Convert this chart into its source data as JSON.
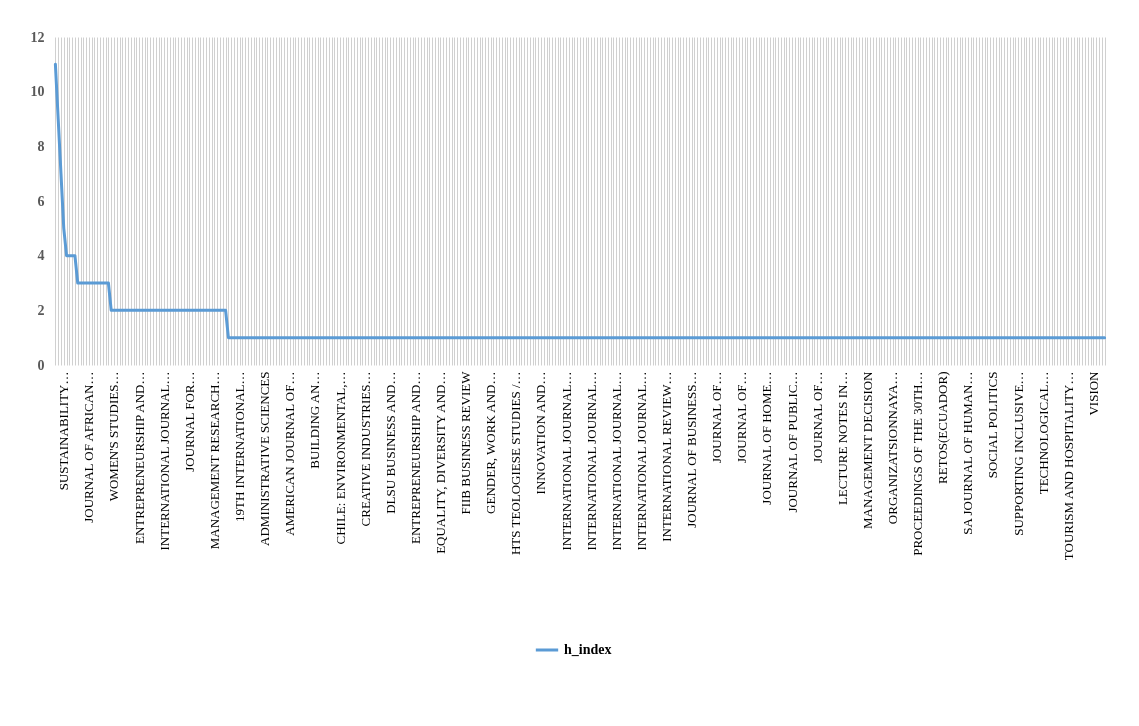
{
  "chart_data": {
    "type": "line",
    "categories": [
      null,
      null,
      null,
      "SUSTAINABILITY…",
      null,
      null,
      null,
      null,
      null,
      null,
      null,
      null,
      "JOURNAL OF AFRICAN…",
      null,
      null,
      null,
      null,
      null,
      null,
      null,
      null,
      "WOMEN'S STUDIES…",
      null,
      null,
      null,
      null,
      null,
      null,
      null,
      null,
      "ENTREPRENEURSHIP AND…",
      null,
      null,
      null,
      null,
      null,
      null,
      null,
      null,
      "INTERNATIONAL  JOURNAL…",
      null,
      null,
      null,
      null,
      null,
      null,
      null,
      null,
      "JOURNAL FOR…",
      null,
      null,
      null,
      null,
      null,
      null,
      null,
      null,
      "MANAGEMENT RESEARCH…",
      null,
      null,
      null,
      null,
      null,
      null,
      null,
      null,
      "19TH INTERNATIONAL…",
      null,
      null,
      null,
      null,
      null,
      null,
      null,
      null,
      "ADMINISTRATIVE  SCIENCES",
      null,
      null,
      null,
      null,
      null,
      null,
      null,
      null,
      "AMERICAN  JOURNAL  OF…",
      null,
      null,
      null,
      null,
      null,
      null,
      null,
      null,
      "BUILDING AN…",
      null,
      null,
      null,
      null,
      null,
      null,
      null,
      null,
      "CHILE: ENVIRONMENTAL,…",
      null,
      null,
      null,
      null,
      null,
      null,
      null,
      null,
      "CREATIVE  INDUSTRIES…",
      null,
      null,
      null,
      null,
      null,
      null,
      null,
      null,
      "DLSU BUSINESS AND…",
      null,
      null,
      null,
      null,
      null,
      null,
      null,
      null,
      "ENTREPRENEURSHIP AND…",
      null,
      null,
      null,
      null,
      null,
      null,
      null,
      null,
      "EQUALITY,  DIVERSITY  AND…",
      null,
      null,
      null,
      null,
      null,
      null,
      null,
      null,
      "FIIB  BUSINESS REVIEW",
      null,
      null,
      null,
      null,
      null,
      null,
      null,
      null,
      "GENDER, WORK AND…",
      null,
      null,
      null,
      null,
      null,
      null,
      null,
      null,
      "HTS  TEOLOGIESE  STUDIES /…",
      null,
      null,
      null,
      null,
      null,
      null,
      null,
      null,
      "INNOVATION AND…",
      null,
      null,
      null,
      null,
      null,
      null,
      null,
      null,
      "INTERNATIONAL JOURNAL…",
      null,
      null,
      null,
      null,
      null,
      null,
      null,
      null,
      "INTERNATIONAL JOURNAL…",
      null,
      null,
      null,
      null,
      null,
      null,
      null,
      null,
      "INTERNATIONAL JOURNAL…",
      null,
      null,
      null,
      null,
      null,
      null,
      null,
      null,
      "INTERNATIONAL JOURNAL…",
      null,
      null,
      null,
      null,
      null,
      null,
      null,
      null,
      "INTERNATIONAL REVIEW…",
      null,
      null,
      null,
      null,
      null,
      null,
      null,
      null,
      "JOURNAL OF BUSINESS…",
      null,
      null,
      null,
      null,
      null,
      null,
      null,
      null,
      "JOURNAL OF…",
      null,
      null,
      null,
      null,
      null,
      null,
      null,
      null,
      "JOURNAL OF…",
      null,
      null,
      null,
      null,
      null,
      null,
      null,
      null,
      "JOURNAL OF HOME…",
      null,
      null,
      null,
      null,
      null,
      null,
      null,
      null,
      "JOURNAL  OF  PUBLIC…",
      null,
      null,
      null,
      null,
      null,
      null,
      null,
      null,
      "JOURNAL OF…",
      null,
      null,
      null,
      null,
      null,
      null,
      null,
      null,
      "LECTURE  NOTES  IN…",
      null,
      null,
      null,
      null,
      null,
      null,
      null,
      null,
      "MANAGEMENT  DECISION",
      null,
      null,
      null,
      null,
      null,
      null,
      null,
      null,
      "ORGANIZATSIONNAYA…",
      null,
      null,
      null,
      null,
      null,
      null,
      null,
      null,
      "PROCEEDINGS  OF  THE  30TH…",
      null,
      null,
      null,
      null,
      null,
      null,
      null,
      null,
      "RETOS(ECUADOR)",
      null,
      null,
      null,
      null,
      null,
      null,
      null,
      null,
      "SA  JOURNAL  OF  HUMAN…",
      null,
      null,
      null,
      null,
      null,
      null,
      null,
      null,
      "SOCIAL  POLITICS",
      null,
      null,
      null,
      null,
      null,
      null,
      null,
      null,
      "SUPPORTING INCLUSIVE…",
      null,
      null,
      null,
      null,
      null,
      null,
      null,
      null,
      "TECHNOLOGICAL…",
      null,
      null,
      null,
      null,
      null,
      null,
      null,
      null,
      "TOURISM  AND  HOSPITALITY…",
      null,
      null,
      null,
      null,
      null,
      null,
      null,
      null,
      "VISION",
      null,
      null,
      null,
      null
    ],
    "series": [
      {
        "name": "h_index",
        "color": "#5b9bd5",
        "values": [
          11,
          9,
          7,
          5,
          4,
          4,
          4,
          4,
          3,
          3,
          3,
          3,
          3,
          3,
          3,
          3,
          3,
          3,
          3,
          3,
          2,
          2,
          2,
          2,
          2,
          2,
          2,
          2,
          2,
          2,
          2,
          2,
          2,
          2,
          2,
          2,
          2,
          2,
          2,
          2,
          2,
          2,
          2,
          2,
          2,
          2,
          2,
          2,
          2,
          2,
          2,
          2,
          2,
          2,
          2,
          2,
          2,
          2,
          2,
          2,
          2,
          2,
          1,
          1,
          1,
          1,
          1,
          1,
          1,
          1,
          1,
          1,
          1,
          1,
          1,
          1,
          1,
          1,
          1,
          1,
          1,
          1,
          1,
          1,
          1,
          1,
          1,
          1,
          1,
          1,
          1,
          1,
          1,
          1,
          1,
          1,
          1,
          1,
          1,
          1,
          1,
          1,
          1,
          1,
          1,
          1,
          1,
          1,
          1,
          1,
          1,
          1,
          1,
          1,
          1,
          1,
          1,
          1,
          1,
          1,
          1,
          1,
          1,
          1,
          1,
          1,
          1,
          1,
          1,
          1,
          1,
          1,
          1,
          1,
          1,
          1,
          1,
          1,
          1,
          1,
          1,
          1,
          1,
          1,
          1,
          1,
          1,
          1,
          1,
          1,
          1,
          1,
          1,
          1,
          1,
          1,
          1,
          1,
          1,
          1,
          1,
          1,
          1,
          1,
          1,
          1,
          1,
          1,
          1,
          1,
          1,
          1,
          1,
          1,
          1,
          1,
          1,
          1,
          1,
          1,
          1,
          1,
          1,
          1,
          1,
          1,
          1,
          1,
          1,
          1,
          1,
          1,
          1,
          1,
          1,
          1,
          1,
          1,
          1,
          1,
          1,
          1,
          1,
          1,
          1,
          1,
          1,
          1,
          1,
          1,
          1,
          1,
          1,
          1,
          1,
          1,
          1,
          1,
          1,
          1,
          1,
          1,
          1,
          1,
          1,
          1,
          1,
          1,
          1,
          1,
          1,
          1,
          1,
          1,
          1,
          1,
          1,
          1,
          1,
          1,
          1,
          1,
          1,
          1,
          1,
          1,
          1,
          1,
          1,
          1,
          1,
          1,
          1,
          1,
          1,
          1,
          1,
          1,
          1,
          1,
          1,
          1,
          1,
          1,
          1,
          1,
          1,
          1,
          1,
          1,
          1,
          1,
          1,
          1,
          1,
          1,
          1,
          1,
          1,
          1,
          1,
          1,
          1,
          1,
          1,
          1,
          1,
          1,
          1,
          1,
          1,
          1,
          1,
          1,
          1,
          1,
          1,
          1,
          1,
          1,
          1,
          1,
          1,
          1,
          1,
          1,
          1,
          1,
          1,
          1,
          1,
          1,
          1,
          1,
          1,
          1,
          1,
          1,
          1,
          1,
          1,
          1,
          1,
          1,
          1,
          1,
          1,
          1,
          1,
          1,
          1,
          1,
          1,
          1,
          1,
          1,
          1,
          1,
          1,
          1,
          1,
          1,
          1,
          1,
          1,
          1,
          1,
          1,
          1,
          1,
          1,
          1,
          1,
          1,
          1,
          1,
          1,
          1,
          1,
          1,
          1,
          1,
          1,
          1,
          1,
          1,
          1,
          1,
          1,
          1,
          1,
          1,
          1,
          1,
          1,
          1,
          1
        ]
      }
    ],
    "ylim": [
      0,
      12
    ],
    "yticks": [
      0,
      2,
      4,
      6,
      8,
      10,
      12
    ],
    "grid": "x",
    "legend": "bottom"
  }
}
